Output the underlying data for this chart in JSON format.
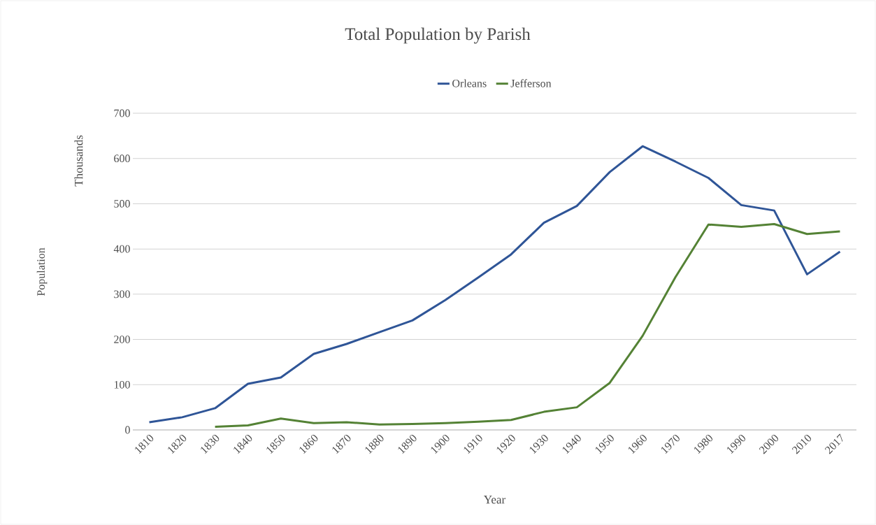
{
  "chart_data": {
    "type": "line",
    "title": "Total Population by Parish",
    "xlabel": "Year",
    "ylabel": "Thousands",
    "annotations": [
      "Population"
    ],
    "categories": [
      "1810",
      "1820",
      "1830",
      "1840",
      "1850",
      "1860",
      "1870",
      "1880",
      "1890",
      "1900",
      "1910",
      "1920",
      "1930",
      "1940",
      "1950",
      "1960",
      "1970",
      "1980",
      "1990",
      "2000",
      "2010",
      "2017"
    ],
    "series": [
      {
        "name": "Orleans",
        "color": "#2f5597",
        "values": [
          17,
          28,
          48,
          102,
          116,
          168,
          190,
          216,
          242,
          287,
          337,
          388,
          458,
          495,
          570,
          627,
          593,
          557,
          497,
          485,
          344,
          394
        ]
      },
      {
        "name": "Jefferson",
        "color": "#548235",
        "values": [
          null,
          null,
          7,
          10,
          25,
          15,
          17,
          12,
          13,
          15,
          18,
          22,
          40,
          50,
          104,
          208,
          338,
          454,
          449,
          455,
          433,
          439
        ]
      }
    ],
    "ylim": [
      0,
      700
    ],
    "yticks": [
      0,
      100,
      200,
      300,
      400,
      500,
      600,
      700
    ],
    "grid": "y",
    "legend": "top",
    "marker": "none",
    "line_style": "solid"
  }
}
